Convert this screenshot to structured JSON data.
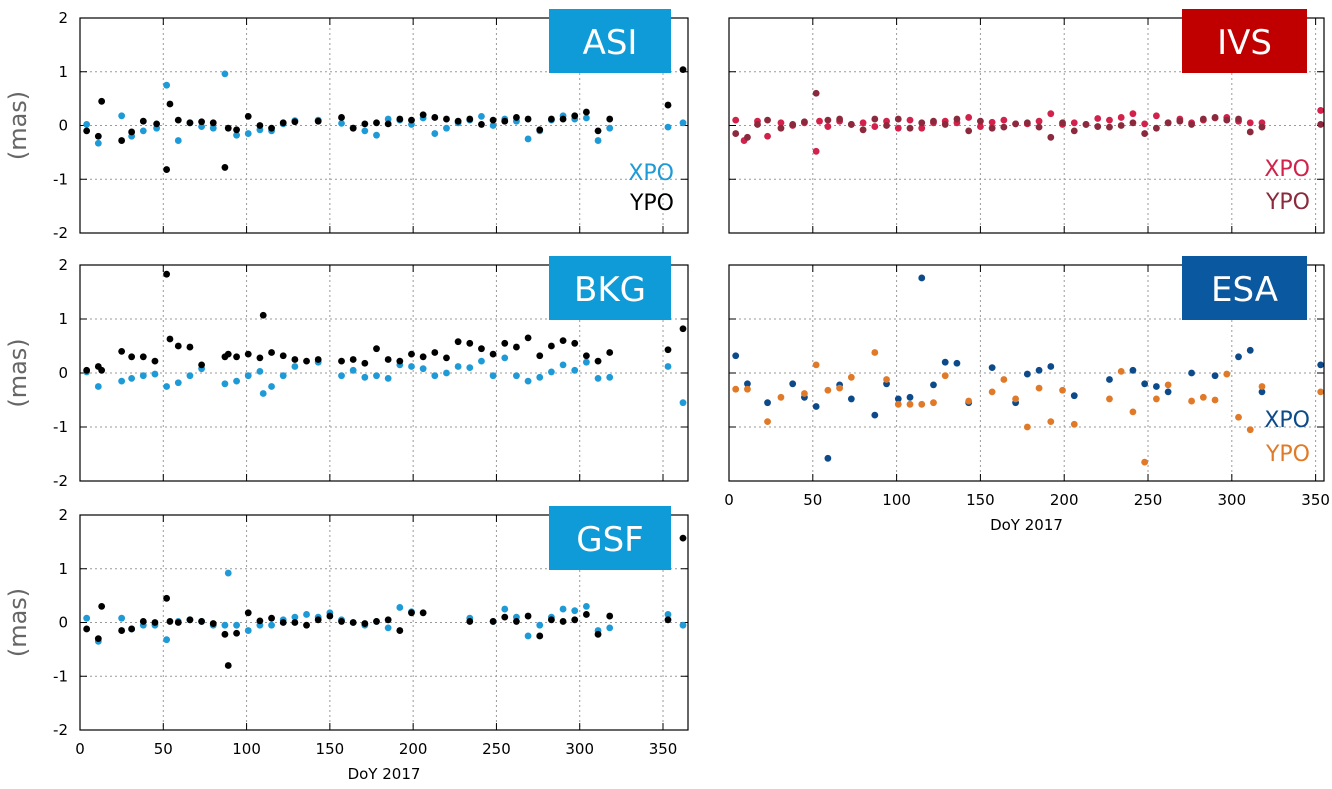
{
  "chart_data": [
    {
      "type": "scatter",
      "title": "ASI",
      "title_bg": "#0f9bd7",
      "xlabel": "",
      "ylabel": "(mas)",
      "xlim": [
        0,
        365
      ],
      "ylim": [
        -2,
        2
      ],
      "xticks": [],
      "yticks": [
        "2",
        "1",
        "0",
        "-1",
        "-2"
      ],
      "legend": "bottom-right",
      "series": [
        {
          "name": "XPO",
          "color": "#1e9ad6",
          "x": [
            4,
            11,
            25,
            31,
            38,
            46,
            52,
            59,
            66,
            73,
            80,
            87,
            94,
            101,
            108,
            115,
            122,
            129,
            143,
            157,
            164,
            171,
            178,
            185,
            192,
            199,
            206,
            213,
            220,
            227,
            234,
            241,
            248,
            255,
            262,
            269,
            276,
            283,
            290,
            297,
            304,
            311,
            318,
            353,
            362
          ],
          "y": [
            0.02,
            -0.33,
            0.18,
            -0.2,
            -0.1,
            -0.05,
            0.75,
            -0.28,
            0.05,
            -0.02,
            -0.05,
            0.96,
            -0.18,
            -0.15,
            -0.08,
            -0.1,
            0.03,
            0.09,
            0.1,
            0.04,
            -0.05,
            -0.1,
            -0.18,
            0.12,
            0.1,
            0.02,
            0.14,
            -0.15,
            -0.05,
            0.05,
            0.1,
            0.17,
            0.0,
            0.12,
            0.08,
            -0.25,
            -0.1,
            0.1,
            0.18,
            0.12,
            0.14,
            -0.28,
            -0.05,
            -0.03,
            0.05
          ]
        },
        {
          "name": "YPO",
          "color": "#000000",
          "x": [
            4,
            11,
            13,
            25,
            31,
            38,
            46,
            52,
            54,
            59,
            66,
            73,
            80,
            87,
            89,
            94,
            101,
            108,
            115,
            122,
            129,
            143,
            157,
            164,
            171,
            178,
            185,
            192,
            199,
            206,
            213,
            220,
            227,
            234,
            241,
            248,
            255,
            262,
            269,
            276,
            283,
            290,
            297,
            304,
            311,
            318,
            353,
            362
          ],
          "y": [
            -0.1,
            -0.2,
            0.45,
            -0.28,
            -0.12,
            0.08,
            0.03,
            -0.82,
            0.4,
            0.1,
            0.05,
            0.07,
            0.05,
            -0.78,
            -0.05,
            -0.08,
            0.17,
            0.0,
            -0.05,
            0.05,
            0.07,
            0.08,
            0.15,
            -0.05,
            0.03,
            0.05,
            0.03,
            0.12,
            0.1,
            0.2,
            0.15,
            0.12,
            0.08,
            0.12,
            0.02,
            0.1,
            0.08,
            0.15,
            0.12,
            -0.08,
            0.12,
            0.12,
            0.18,
            0.25,
            -0.1,
            0.12,
            0.38,
            1.04
          ]
        }
      ]
    },
    {
      "type": "scatter",
      "title": "IVS",
      "title_bg": "#c00000",
      "xlabel": "",
      "ylabel": "",
      "xlim": [
        0,
        355
      ],
      "ylim": [
        -2,
        2
      ],
      "xticks": [],
      "yticks": [],
      "legend": "bottom-right",
      "series": [
        {
          "name": "XPO",
          "color": "#d2224b",
          "x": [
            4,
            9,
            17,
            23,
            31,
            38,
            45,
            52,
            54,
            59,
            66,
            73,
            80,
            87,
            94,
            101,
            108,
            115,
            122,
            129,
            136,
            143,
            150,
            157,
            164,
            171,
            178,
            185,
            192,
            199,
            206,
            213,
            220,
            227,
            234,
            241,
            248,
            255,
            262,
            269,
            276,
            283,
            290,
            297,
            304,
            311,
            318,
            353
          ],
          "y": [
            0.1,
            -0.28,
            0.08,
            -0.2,
            0.05,
            0.0,
            0.05,
            -0.48,
            0.08,
            -0.02,
            0.08,
            0.02,
            0.05,
            -0.02,
            0.08,
            -0.05,
            0.1,
            -0.05,
            0.05,
            0.08,
            0.05,
            0.15,
            -0.02,
            0.06,
            0.1,
            0.03,
            0.03,
            0.08,
            0.22,
            0.02,
            0.05,
            0.02,
            0.13,
            0.1,
            0.15,
            0.22,
            0.03,
            0.18,
            0.05,
            0.12,
            0.05,
            0.1,
            0.14,
            0.15,
            0.08,
            0.05,
            0.05,
            0.28
          ]
        },
        {
          "name": "YPO",
          "color": "#8a2a3c",
          "x": [
            4,
            11,
            17,
            23,
            31,
            38,
            45,
            52,
            59,
            66,
            73,
            80,
            87,
            94,
            101,
            108,
            115,
            122,
            129,
            136,
            143,
            150,
            157,
            164,
            171,
            178,
            185,
            192,
            199,
            206,
            213,
            220,
            227,
            234,
            241,
            248,
            255,
            262,
            269,
            276,
            283,
            290,
            297,
            304,
            311,
            318,
            353
          ],
          "y": [
            -0.15,
            -0.22,
            0.02,
            0.1,
            -0.05,
            0.02,
            0.07,
            0.6,
            0.1,
            0.12,
            0.02,
            -0.08,
            0.12,
            0.0,
            0.12,
            -0.05,
            0.05,
            0.08,
            0.02,
            0.12,
            -0.1,
            0.08,
            -0.05,
            -0.03,
            0.03,
            0.05,
            -0.03,
            -0.22,
            0.05,
            -0.1,
            0.02,
            -0.02,
            -0.03,
            0.0,
            0.05,
            -0.15,
            -0.05,
            0.05,
            0.08,
            0.02,
            0.12,
            0.15,
            0.1,
            0.12,
            -0.12,
            -0.03,
            0.02
          ]
        }
      ]
    },
    {
      "type": "scatter",
      "title": "BKG",
      "title_bg": "#0f9bd7",
      "xlabel": "",
      "ylabel": "(mas)",
      "xlim": [
        0,
        365
      ],
      "ylim": [
        -2,
        2
      ],
      "xticks": [],
      "yticks": [
        "2",
        "1",
        "0",
        "-1",
        "-2"
      ],
      "legend": "",
      "series": [
        {
          "name": "",
          "color": "#1e9ad6",
          "x": [
            4,
            11,
            25,
            31,
            38,
            45,
            52,
            59,
            66,
            73,
            87,
            94,
            101,
            108,
            110,
            115,
            122,
            129,
            143,
            157,
            164,
            171,
            178,
            185,
            192,
            199,
            206,
            213,
            220,
            227,
            234,
            241,
            248,
            255,
            262,
            269,
            276,
            283,
            290,
            297,
            304,
            311,
            318,
            353,
            362
          ],
          "y": [
            0.02,
            -0.25,
            -0.15,
            -0.1,
            -0.05,
            -0.02,
            -0.25,
            -0.18,
            -0.05,
            0.08,
            -0.2,
            -0.15,
            -0.05,
            0.03,
            -0.38,
            -0.25,
            -0.05,
            0.12,
            0.2,
            -0.05,
            0.05,
            -0.08,
            -0.05,
            -0.1,
            0.15,
            0.12,
            0.08,
            -0.05,
            0.0,
            0.12,
            0.1,
            0.22,
            -0.05,
            0.28,
            -0.05,
            -0.15,
            -0.08,
            0.02,
            0.15,
            0.05,
            0.2,
            -0.1,
            -0.08,
            0.12,
            -0.55
          ]
        },
        {
          "name": "",
          "color": "#000000",
          "x": [
            4,
            11,
            13,
            25,
            31,
            38,
            45,
            52,
            54,
            59,
            66,
            73,
            87,
            89,
            94,
            101,
            108,
            110,
            115,
            122,
            129,
            136,
            143,
            157,
            164,
            171,
            178,
            185,
            192,
            199,
            206,
            213,
            220,
            227,
            234,
            241,
            248,
            255,
            262,
            269,
            276,
            283,
            290,
            297,
            304,
            311,
            318,
            353,
            362
          ],
          "y": [
            0.05,
            0.12,
            0.05,
            0.4,
            0.3,
            0.3,
            0.22,
            1.83,
            0.63,
            0.5,
            0.48,
            0.15,
            0.3,
            0.35,
            0.3,
            0.35,
            0.28,
            1.07,
            0.38,
            0.32,
            0.25,
            0.22,
            0.25,
            0.22,
            0.25,
            0.18,
            0.45,
            0.25,
            0.22,
            0.35,
            0.3,
            0.38,
            0.28,
            0.58,
            0.55,
            0.45,
            0.35,
            0.55,
            0.48,
            0.65,
            0.32,
            0.5,
            0.6,
            0.55,
            0.32,
            0.22,
            0.38,
            0.43,
            0.82
          ]
        }
      ]
    },
    {
      "type": "scatter",
      "title": "ESA",
      "title_bg": "#0a58a0",
      "xlabel": "DoY 2017",
      "ylabel": "",
      "xlim": [
        0,
        355
      ],
      "ylim": [
        -2,
        2
      ],
      "xticks": [
        "0",
        "50",
        "100",
        "150",
        "200",
        "250",
        "300",
        "350"
      ],
      "yticks": [],
      "legend": "bottom-right",
      "series": [
        {
          "name": "XPO",
          "color": "#0d4a8a",
          "x": [
            4,
            11,
            23,
            38,
            45,
            52,
            59,
            66,
            73,
            87,
            94,
            101,
            108,
            115,
            122,
            129,
            136,
            143,
            157,
            171,
            178,
            185,
            192,
            206,
            227,
            241,
            248,
            255,
            262,
            276,
            290,
            304,
            311,
            318,
            353
          ],
          "y": [
            0.32,
            -0.2,
            -0.55,
            -0.2,
            -0.45,
            -0.62,
            -1.58,
            -0.22,
            -0.48,
            -0.78,
            -0.2,
            -0.48,
            -0.45,
            1.76,
            -0.22,
            0.2,
            0.18,
            -0.55,
            0.1,
            -0.55,
            -0.02,
            0.05,
            0.12,
            -0.42,
            -0.12,
            0.05,
            -0.2,
            -0.25,
            -0.35,
            0.0,
            -0.05,
            0.3,
            0.42,
            -0.35,
            0.15
          ]
        },
        {
          "name": "YPO",
          "color": "#e07a28",
          "x": [
            4,
            11,
            23,
            31,
            45,
            52,
            59,
            66,
            73,
            87,
            94,
            101,
            108,
            115,
            122,
            129,
            143,
            157,
            164,
            171,
            178,
            185,
            192,
            199,
            206,
            227,
            234,
            241,
            248,
            255,
            262,
            276,
            283,
            290,
            297,
            304,
            311,
            318,
            353
          ],
          "y": [
            -0.3,
            -0.3,
            -0.9,
            -0.45,
            -0.38,
            0.15,
            -0.32,
            -0.28,
            -0.08,
            0.38,
            -0.12,
            -0.58,
            -0.58,
            -0.58,
            -0.55,
            -0.05,
            -0.52,
            -0.35,
            -0.12,
            -0.48,
            -1.0,
            -0.28,
            -0.9,
            -0.32,
            -0.95,
            -0.48,
            0.03,
            -0.72,
            -1.65,
            -0.48,
            -0.22,
            -0.52,
            -0.45,
            -0.5,
            -0.02,
            -0.82,
            -1.05,
            -0.25,
            -0.35
          ]
        }
      ]
    },
    {
      "type": "scatter",
      "title": "GSF",
      "title_bg": "#0f9bd7",
      "xlabel": "DoY 2017",
      "ylabel": "(mas)",
      "xlim": [
        0,
        365
      ],
      "ylim": [
        -2,
        2
      ],
      "xticks": [
        "0",
        "50",
        "100",
        "150",
        "200",
        "250",
        "300",
        "350"
      ],
      "yticks": [
        "2",
        "1",
        "0",
        "-1",
        "-2"
      ],
      "legend": "",
      "series": [
        {
          "name": "",
          "color": "#1e9ad6",
          "x": [
            4,
            11,
            25,
            31,
            38,
            45,
            52,
            59,
            66,
            73,
            80,
            87,
            89,
            94,
            101,
            108,
            115,
            122,
            129,
            136,
            143,
            150,
            157,
            164,
            171,
            178,
            185,
            192,
            199,
            234,
            248,
            255,
            262,
            269,
            276,
            283,
            290,
            297,
            304,
            311,
            318,
            353,
            362
          ],
          "y": [
            0.08,
            -0.35,
            0.08,
            -0.12,
            -0.05,
            -0.05,
            -0.32,
            0.02,
            0.05,
            0.02,
            -0.05,
            -0.05,
            0.92,
            -0.05,
            -0.15,
            -0.05,
            -0.05,
            0.05,
            0.1,
            0.15,
            0.1,
            0.18,
            0.05,
            0.0,
            -0.05,
            0.02,
            -0.1,
            0.28,
            0.2,
            0.08,
            0.02,
            0.25,
            0.1,
            -0.25,
            -0.05,
            0.1,
            0.25,
            0.22,
            0.3,
            -0.15,
            -0.1,
            0.15,
            -0.05
          ]
        },
        {
          "name": "",
          "color": "#000000",
          "x": [
            4,
            11,
            13,
            25,
            31,
            38,
            45,
            52,
            54,
            59,
            66,
            73,
            80,
            87,
            89,
            94,
            101,
            108,
            115,
            122,
            129,
            136,
            143,
            150,
            157,
            164,
            171,
            178,
            185,
            192,
            199,
            206,
            234,
            248,
            255,
            262,
            269,
            276,
            283,
            290,
            297,
            304,
            311,
            318,
            353,
            362
          ],
          "y": [
            -0.12,
            -0.3,
            0.3,
            -0.15,
            -0.12,
            0.02,
            0.0,
            0.45,
            0.02,
            0.0,
            0.05,
            0.02,
            -0.02,
            -0.22,
            -0.8,
            -0.2,
            0.18,
            0.03,
            0.08,
            0.0,
            0.0,
            -0.05,
            0.05,
            0.12,
            0.02,
            0.0,
            -0.02,
            0.02,
            0.05,
            -0.15,
            0.18,
            0.18,
            0.02,
            0.02,
            0.1,
            0.02,
            0.12,
            -0.25,
            0.05,
            0.02,
            0.05,
            0.15,
            -0.22,
            0.12,
            0.05,
            1.57
          ]
        }
      ]
    }
  ]
}
